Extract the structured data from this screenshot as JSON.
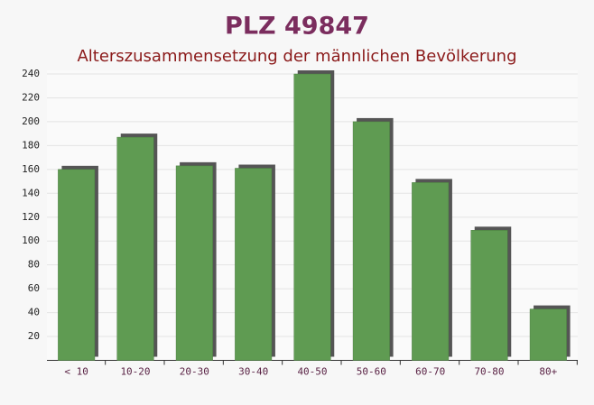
{
  "chart_data": {
    "type": "bar",
    "title": "PLZ 49847",
    "subtitle": "Alterszusammensetzung der männlichen Bevölkerung",
    "categories": [
      "< 10",
      "10-20",
      "20-30",
      "30-40",
      "40-50",
      "50-60",
      "60-70",
      "70-80",
      "80+"
    ],
    "values": [
      160,
      187,
      163,
      161,
      240,
      200,
      149,
      109,
      43
    ],
    "color": "#5f9b52",
    "ylim": [
      0,
      240
    ],
    "yticks": [
      20,
      40,
      60,
      80,
      100,
      120,
      140,
      160,
      180,
      200,
      220,
      240
    ],
    "grid": true
  }
}
